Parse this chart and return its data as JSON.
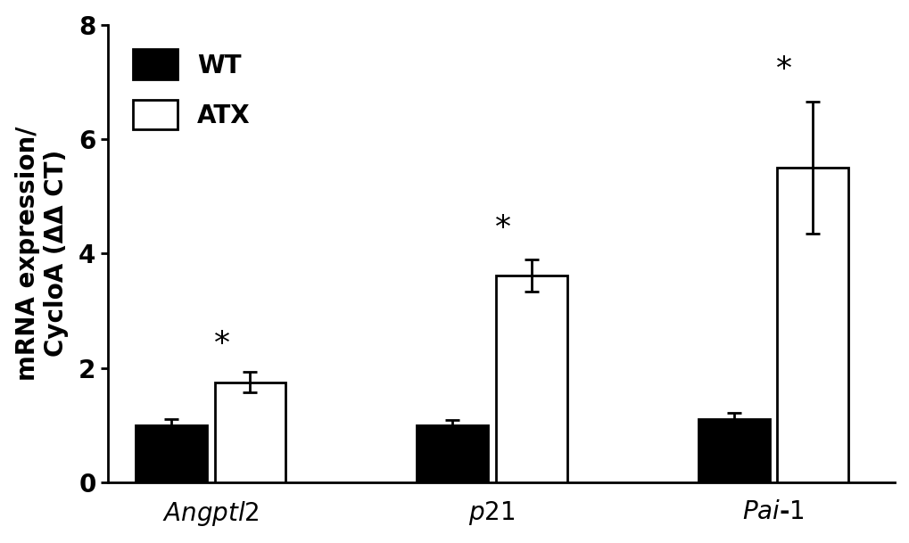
{
  "groups": [
    "Angptl2",
    "p21",
    "Pai-1"
  ],
  "wt_values": [
    1.0,
    1.0,
    1.1
  ],
  "atx_values": [
    1.75,
    3.62,
    5.5
  ],
  "wt_errors": [
    0.1,
    0.09,
    0.12
  ],
  "atx_errors": [
    0.18,
    0.28,
    1.15
  ],
  "ylim": [
    0,
    8
  ],
  "yticks": [
    0,
    2,
    4,
    6,
    8
  ],
  "ylabel": "mRNA expression/\nCycloA (ΔΔ CT)",
  "wt_color": "#000000",
  "atx_color": "#ffffff",
  "bar_edge_color": "#000000",
  "bar_width": 0.38,
  "legend_labels": [
    "WT",
    "ATX"
  ],
  "background_color": "#ffffff",
  "label_fontsize": 20,
  "tick_fontsize": 20,
  "legend_fontsize": 20,
  "asterisk_fontsize": 26,
  "capsize": 6,
  "linewidth": 2.0
}
